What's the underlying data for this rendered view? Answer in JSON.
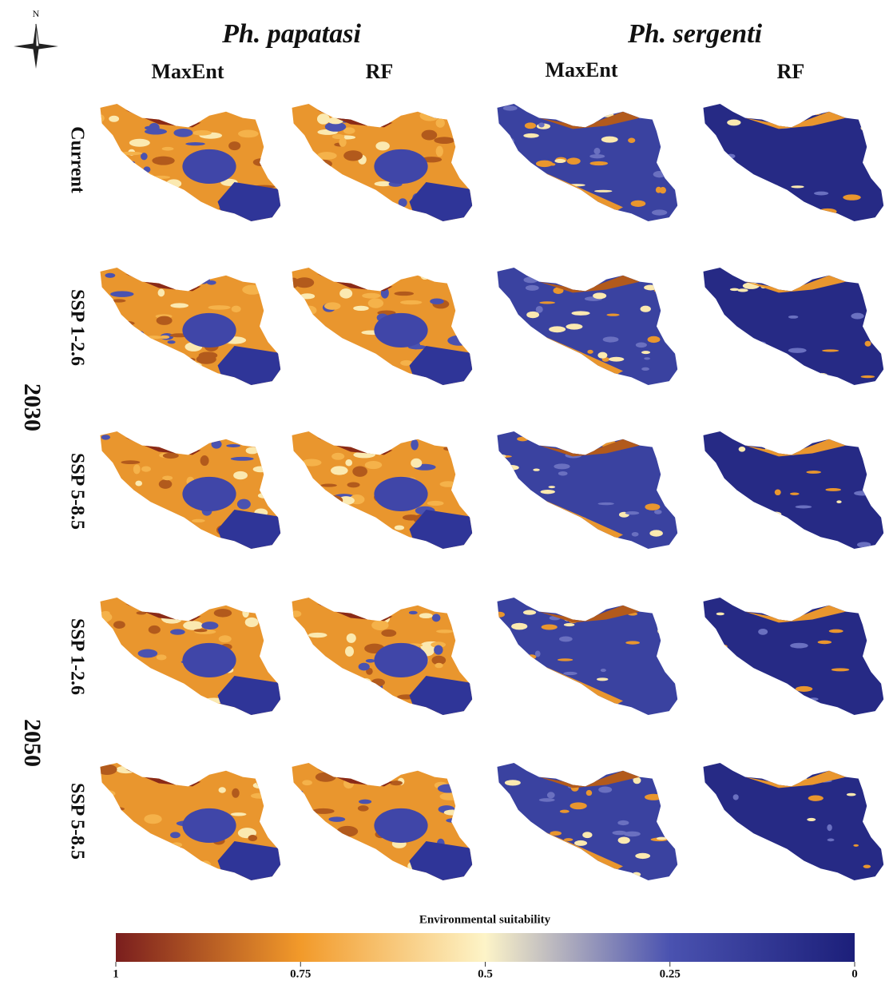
{
  "compass": {
    "label": "N"
  },
  "species": [
    {
      "name": "Ph. papatasi",
      "models": [
        "MaxEnt",
        "RF"
      ]
    },
    {
      "name": "Ph. sergenti",
      "models": [
        "MaxEnt",
        "RF"
      ]
    }
  ],
  "current": {
    "label": "Current"
  },
  "years": [
    {
      "label": "2030",
      "scenarios": [
        "SSP 1-2.6",
        "SSP 5-8.5"
      ]
    },
    {
      "label": "2050",
      "scenarios": [
        "SSP 1-2.6",
        "SSP 5-8.5"
      ]
    }
  ],
  "legend": {
    "title": "Environmental suitability",
    "ticks": [
      1,
      0.75,
      0.5,
      0.25,
      0
    ],
    "colors": [
      "#7a1e1e",
      "#f29a2a",
      "#fdf4c8",
      "#4a52b0",
      "#1c1f7a"
    ]
  }
}
